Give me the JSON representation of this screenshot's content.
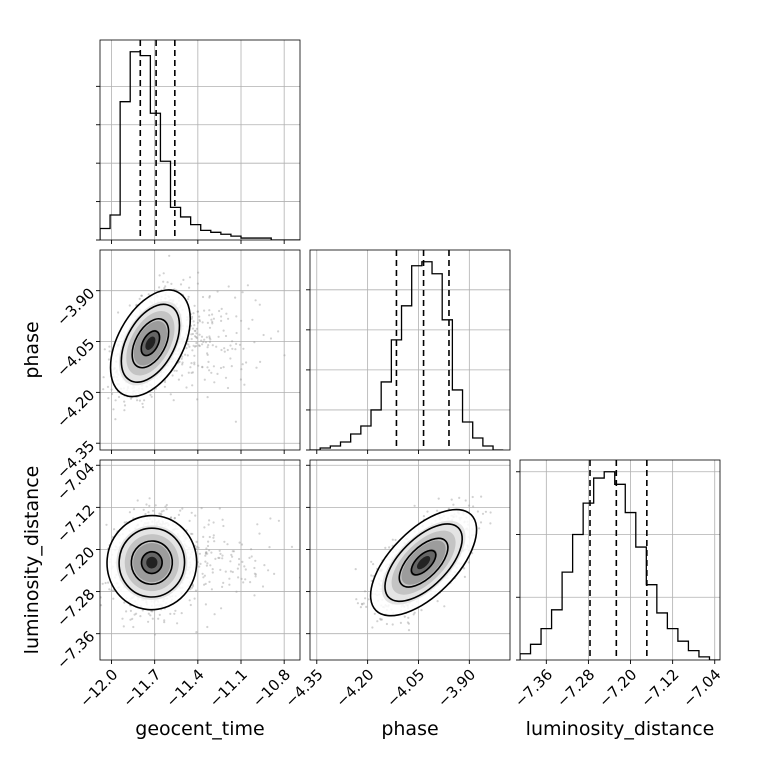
{
  "chart_data": {
    "type": "corner",
    "parameters": [
      "geocent_time",
      "phase",
      "luminosity_distance"
    ],
    "axis_labels": {
      "x": [
        "geocent_time",
        "phase",
        "luminosity_distance"
      ],
      "y": [
        "",
        "phase",
        "luminosity_distance"
      ]
    },
    "ranges": {
      "geocent_time": [
        -12.08,
        -10.69
      ],
      "phase": [
        -4.37,
        -3.78
      ],
      "luminosity_distance": [
        -7.41,
        -7.03
      ]
    },
    "ticks": {
      "geocent_time": [
        -12.0,
        -11.7,
        -11.4,
        -11.1,
        -10.8
      ],
      "phase": [
        -4.35,
        -4.2,
        -4.05,
        -3.9
      ],
      "luminosity_distance": [
        -7.36,
        -7.28,
        -7.2,
        -7.12,
        -7.04
      ]
    },
    "tick_labels": {
      "geocent_time": [
        "−12.0",
        "−11.7",
        "−11.4",
        "−11.1",
        "−10.8"
      ],
      "phase": [
        "−4.35",
        "−4.20",
        "−4.05",
        "−3.90"
      ],
      "luminosity_distance": [
        "−7.36",
        "−7.28",
        "−7.20",
        "−7.12",
        "−7.04"
      ]
    },
    "quantiles": {
      "geocent_time": [
        -11.8,
        -11.69,
        -11.56
      ],
      "phase": [
        -4.115,
        -4.035,
        -3.96
      ],
      "luminosity_distance": [
        -7.277,
        -7.227,
        -7.169
      ]
    },
    "histograms": {
      "geocent_time": {
        "edges": [
          -12.08,
          -12.01,
          -11.94,
          -11.87,
          -11.8,
          -11.73,
          -11.66,
          -11.59,
          -11.52,
          -11.45,
          -11.38,
          -11.31,
          -11.24,
          -11.17,
          -11.1,
          -11.03,
          -10.96,
          -10.89,
          -10.82,
          -10.75,
          -10.69
        ],
        "counts": [
          6,
          13,
          72,
          98,
          96,
          66,
          41,
          17,
          12,
          8,
          5,
          4,
          3,
          2,
          1,
          1,
          1,
          0,
          0,
          0
        ]
      },
      "phase": {
        "edges": [
          -4.37,
          -4.34,
          -4.31,
          -4.28,
          -4.25,
          -4.22,
          -4.19,
          -4.16,
          -4.13,
          -4.1,
          -4.07,
          -4.04,
          -4.01,
          -3.98,
          -3.95,
          -3.92,
          -3.89,
          -3.86,
          -3.83,
          -3.8
        ],
        "counts": [
          0,
          1,
          2,
          4,
          8,
          12,
          20,
          34,
          55,
          72,
          92,
          94,
          88,
          65,
          30,
          14,
          6,
          2,
          0
        ]
      },
      "luminosity_distance": {
        "edges": [
          -7.41,
          -7.39,
          -7.37,
          -7.35,
          -7.33,
          -7.31,
          -7.29,
          -7.27,
          -7.25,
          -7.23,
          -7.21,
          -7.19,
          -7.17,
          -7.15,
          -7.13,
          -7.11,
          -7.09,
          -7.07,
          -7.05,
          -7.03
        ],
        "counts": [
          2,
          5,
          10,
          16,
          28,
          40,
          50,
          58,
          60,
          56,
          47,
          36,
          24,
          15,
          10,
          6,
          3,
          1,
          0
        ]
      }
    },
    "joint": {
      "phase_vs_geocent_time": {
        "mean": [
          -11.73,
          -4.055
        ],
        "sd": [
          0.11,
          0.065
        ],
        "rho": 0.52
      },
      "luminosity_distance_vs_geocent_time": {
        "mean": [
          -11.72,
          -7.225
        ],
        "sd": [
          0.11,
          0.04
        ],
        "rho": 0.05
      },
      "luminosity_distance_vs_phase": {
        "mean": [
          -4.035,
          -7.225
        ],
        "sd": [
          0.062,
          0.04
        ],
        "rho": 0.62
      }
    },
    "grid": true,
    "quantile_linestyle": "dashed"
  }
}
